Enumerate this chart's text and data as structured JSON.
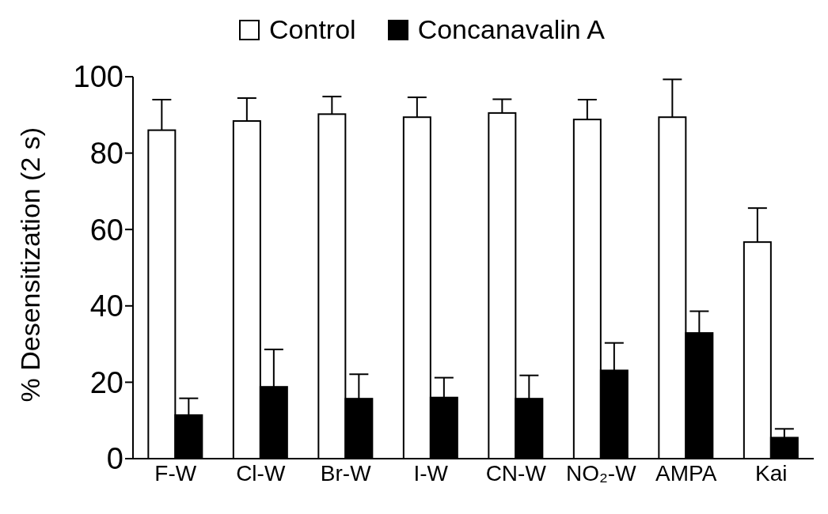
{
  "chart_data": {
    "type": "bar",
    "ylabel": "% Desensitization (2 s)",
    "categories": [
      "F-W",
      "Cl-W",
      "Br-W",
      "I-W",
      "CN-W",
      "NO₂-W",
      "AMPA",
      "Kai"
    ],
    "series": [
      {
        "name": "Control",
        "color": "#ffffff",
        "values": [
          86.0,
          88.4,
          90.2,
          89.4,
          90.5,
          88.8,
          89.4,
          56.7
        ],
        "errors": [
          [
            86.0,
            94.0
          ],
          [
            88.4,
            94.4
          ],
          [
            90.2,
            94.8
          ],
          [
            89.4,
            94.6
          ],
          [
            90.5,
            94.1
          ],
          [
            88.8,
            94.0
          ],
          [
            89.4,
            99.3
          ],
          [
            56.7,
            65.6
          ]
        ]
      },
      {
        "name": "Concanavalin A",
        "color": "#000000",
        "values": [
          11.4,
          18.8,
          15.7,
          16.0,
          15.7,
          23.1,
          32.9,
          5.5
        ],
        "errors": [
          [
            11.4,
            15.8
          ],
          [
            18.8,
            28.6
          ],
          [
            15.7,
            22.1
          ],
          [
            16.0,
            21.2
          ],
          [
            15.7,
            21.8
          ],
          [
            23.1,
            30.3
          ],
          [
            32.9,
            38.6
          ],
          [
            5.5,
            7.8
          ]
        ]
      }
    ],
    "ylim": [
      0,
      100
    ],
    "yticks": [
      0,
      20,
      40,
      60,
      80,
      100
    ],
    "grid": false,
    "legend": "top"
  }
}
